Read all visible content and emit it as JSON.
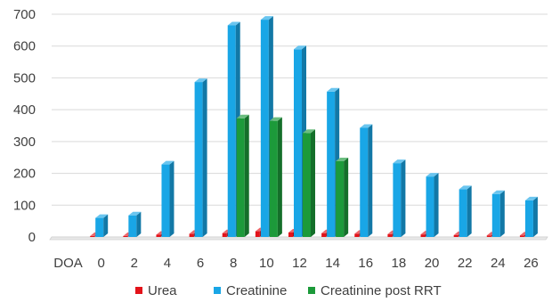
{
  "chart_data": {
    "type": "bar",
    "style": "3d-clustered-column",
    "categories": [
      "DOA",
      "0",
      "2",
      "4",
      "6",
      "8",
      "10",
      "12",
      "14",
      "16",
      "18",
      "20",
      "22",
      "24",
      "26"
    ],
    "series": [
      {
        "name": "Urea",
        "color": "#e3131a",
        "values": [
          null,
          3,
          3,
          7,
          10,
          12,
          18,
          14,
          12,
          10,
          9,
          8,
          6,
          5,
          5
        ]
      },
      {
        "name": "Creatinine",
        "color": "#19a6e6",
        "values": [
          null,
          60,
          68,
          228,
          487,
          665,
          683,
          590,
          457,
          343,
          232,
          190,
          150,
          135,
          115
        ]
      },
      {
        "name": "Creatinine post RRT",
        "color": "#1c9a3a",
        "values": [
          null,
          null,
          null,
          null,
          null,
          373,
          365,
          327,
          238,
          null,
          null,
          null,
          null,
          null,
          null
        ]
      }
    ],
    "y_ticks": [
      "0",
      "100",
      "200",
      "300",
      "400",
      "500",
      "600",
      "700"
    ],
    "ylim": [
      0,
      700
    ],
    "grid": true,
    "legend_position": "bottom",
    "title": "",
    "xlabel": "",
    "ylabel": ""
  }
}
